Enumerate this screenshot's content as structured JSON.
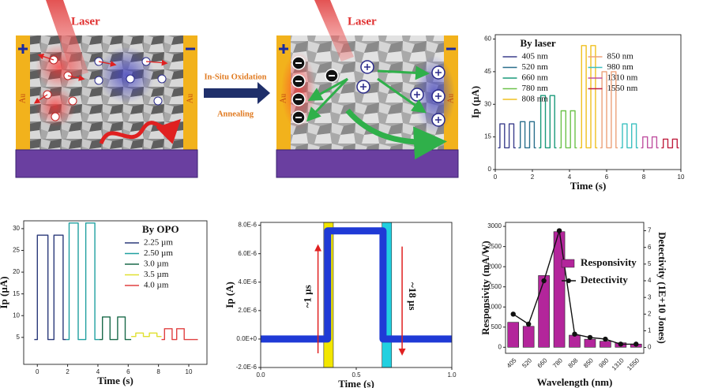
{
  "schematic": {
    "left": {
      "laser": "Laser",
      "electrodes": [
        "Au",
        "Au"
      ]
    },
    "process": {
      "top": "In-Situ Oxidation",
      "bottom": "Annealing"
    },
    "right": {
      "laser": "Laser",
      "electrodes": [
        "Au",
        "Au"
      ]
    }
  },
  "chart_data": [
    {
      "type": "line",
      "legend_title": "By laser",
      "legend": "upper center",
      "xlabel": "Time (s)",
      "ylabel": "Ip (µA)",
      "xlim": [
        0,
        10
      ],
      "ylim": [
        0,
        62
      ],
      "xticks": [
        0,
        2,
        4,
        6,
        8,
        10
      ],
      "yticks": [
        0,
        15,
        30,
        45,
        60
      ],
      "grid": false,
      "series": [
        {
          "name": "405 nm",
          "color": "#3b3f8c",
          "x": [
            0.15,
            0.25,
            0.25,
            0.5,
            0.5,
            0.75,
            0.75,
            1.0,
            1.0,
            1.1
          ],
          "values": [
            10,
            10,
            21,
            21,
            10,
            10,
            21,
            21,
            10,
            10
          ]
        },
        {
          "name": "520 nm",
          "color": "#2a6f8c",
          "x": [
            1.25,
            1.35,
            1.35,
            1.6,
            1.6,
            1.85,
            1.85,
            2.1,
            2.1,
            2.2
          ],
          "values": [
            10,
            10,
            22,
            22,
            10,
            10,
            22,
            22,
            10,
            10
          ]
        },
        {
          "name": "660 nm",
          "color": "#1a9a7a",
          "x": [
            2.35,
            2.45,
            2.45,
            2.7,
            2.7,
            2.95,
            2.95,
            3.2,
            3.2,
            3.3
          ],
          "values": [
            10,
            10,
            34,
            34,
            10,
            10,
            34,
            34,
            10,
            10
          ]
        },
        {
          "name": "780 nm",
          "color": "#6cc24a",
          "x": [
            3.45,
            3.55,
            3.55,
            3.8,
            3.8,
            4.05,
            4.05,
            4.3,
            4.3,
            4.4
          ],
          "values": [
            10,
            10,
            27,
            27,
            10,
            10,
            27,
            27,
            10,
            10
          ]
        },
        {
          "name": "808 nm",
          "color": "#f0c020",
          "x": [
            4.55,
            4.65,
            4.65,
            4.9,
            4.9,
            5.15,
            5.15,
            5.4,
            5.4,
            5.5
          ],
          "values": [
            10,
            10,
            57,
            57,
            10,
            10,
            57,
            57,
            10,
            10
          ]
        },
        {
          "name": "850 nm",
          "color": "#eda27a",
          "x": [
            5.65,
            5.75,
            5.75,
            6.0,
            6.0,
            6.25,
            6.25,
            6.5,
            6.5,
            6.6
          ],
          "values": [
            10,
            10,
            45,
            45,
            10,
            10,
            45,
            45,
            10,
            10
          ]
        },
        {
          "name": "980 nm",
          "color": "#3cc0c0",
          "x": [
            6.75,
            6.85,
            6.85,
            7.1,
            7.1,
            7.35,
            7.35,
            7.6,
            7.6,
            7.7
          ],
          "values": [
            10,
            10,
            21,
            21,
            10,
            10,
            21,
            21,
            10,
            10
          ]
        },
        {
          "name": "1310 nm",
          "color": "#c050a0",
          "x": [
            7.85,
            7.95,
            7.95,
            8.2,
            8.2,
            8.45,
            8.45,
            8.7,
            8.7,
            8.8
          ],
          "values": [
            10,
            10,
            15,
            15,
            10,
            10,
            15,
            15,
            10,
            10
          ]
        },
        {
          "name": "1550 nm",
          "color": "#c02040",
          "x": [
            8.95,
            9.05,
            9.05,
            9.3,
            9.3,
            9.55,
            9.55,
            9.8,
            9.8,
            9.9
          ],
          "values": [
            10,
            10,
            14,
            14,
            10,
            10,
            14,
            14,
            10,
            10
          ]
        }
      ]
    },
    {
      "type": "line",
      "legend_title": "By OPO",
      "legend": "upper right",
      "xlabel": "Time (s)",
      "ylabel": "Ip (µA)",
      "xlim": [
        -0.9,
        11.2
      ],
      "ylim": [
        -1.2,
        31.8
      ],
      "xticks": [
        0,
        2,
        4,
        6,
        8,
        10
      ],
      "yticks": [
        5,
        10,
        15,
        20,
        25,
        30
      ],
      "grid": false,
      "series": [
        {
          "name": "2.25 µm",
          "color": "#2b3a7a",
          "x": [
            -0.2,
            0,
            0,
            0.7,
            0.7,
            1.1,
            1.1,
            1.7,
            1.7,
            1.9
          ],
          "values": [
            4.5,
            4.5,
            28.5,
            28.5,
            4.5,
            4.5,
            28.5,
            28.5,
            4.5,
            4.5
          ]
        },
        {
          "name": "2.50 µm",
          "color": "#20a0a0",
          "x": [
            1.9,
            2.1,
            2.1,
            2.7,
            2.7,
            3.2,
            3.2,
            3.8,
            3.8,
            4.1
          ],
          "values": [
            4.5,
            4.5,
            31.3,
            31.3,
            4.5,
            4.5,
            31.3,
            31.3,
            4.5,
            4.5
          ]
        },
        {
          "name": "3.0 µm",
          "color": "#1a6a4a",
          "x": [
            4.1,
            4.3,
            4.3,
            4.8,
            4.8,
            5.3,
            5.3,
            5.8,
            5.8,
            6.2
          ],
          "values": [
            4.5,
            4.5,
            9.7,
            9.7,
            4.5,
            4.5,
            9.7,
            9.7,
            4.5,
            4.5
          ]
        },
        {
          "name": "3.5 µm",
          "color": "#e0e030",
          "x": [
            6.2,
            6.5,
            6.5,
            7.0,
            7.0,
            7.4,
            7.4,
            7.9,
            7.9,
            8.2
          ],
          "values": [
            5.2,
            5.2,
            6,
            6,
            5.2,
            5.2,
            6,
            6,
            5.2,
            5.2
          ]
        },
        {
          "name": "4.0 µm",
          "color": "#e04040",
          "x": [
            8.2,
            8.4,
            8.4,
            8.9,
            8.9,
            9.2,
            9.2,
            9.7,
            9.7,
            10.6
          ],
          "values": [
            4.5,
            4.5,
            7,
            7,
            4.5,
            4.5,
            7,
            7,
            4.5,
            4.5
          ]
        }
      ]
    },
    {
      "type": "line",
      "xlabel": "Time (s)",
      "ylabel": "Ip (A)",
      "xlim": [
        0,
        1
      ],
      "ylim": [
        -2e-06,
        8.2e-06
      ],
      "xticks": [
        {
          "value": 0,
          "label": "0.0"
        },
        {
          "value": 0.5,
          "label": "0.5"
        },
        {
          "value": 1,
          "label": "1.0"
        }
      ],
      "yticks": [
        {
          "value": -2e-06,
          "label": "-2.0E-6"
        },
        {
          "value": 0,
          "label": "0.0E+0"
        },
        {
          "value": 2e-06,
          "label": "2.0E-6"
        },
        {
          "value": 4e-06,
          "label": "4.0E-6"
        },
        {
          "value": 6e-06,
          "label": "6.0E-6"
        },
        {
          "value": 8e-06,
          "label": "8.0E-6"
        }
      ],
      "grid": false,
      "highlights": [
        {
          "xlim": [
            0.33,
            0.38
          ],
          "color": "#f2e600"
        },
        {
          "xlim": [
            0.635,
            0.685
          ],
          "color": "#22d0e0"
        }
      ],
      "annotations": [
        "~1 µs",
        "~18 µs"
      ],
      "series": [
        {
          "color": "#1f3ad6",
          "x": [
            0,
            0.35,
            0.35,
            0.64,
            0.64,
            1.0
          ],
          "values": [
            0,
            0,
            7.6e-06,
            7.6e-06,
            0,
            0
          ]
        }
      ]
    },
    {
      "type": "bar",
      "legend": "upper right",
      "xlabel": "Wavelength (nm)",
      "ylabel": "Responsivity (mA/W)",
      "ylabel_color": "#1f2fd0",
      "y2label": "Detectivity (1E+10 Jones)",
      "xtick_rotation": 45,
      "categories": [
        "405",
        "520",
        "660",
        "780",
        "808",
        "850",
        "980",
        "1310",
        "1550"
      ],
      "ylim": [
        -150,
        3100
      ],
      "yticks": [
        0,
        500,
        1000,
        1500,
        2000,
        2500,
        3000
      ],
      "y2lim": [
        -0.35,
        7.5
      ],
      "y2ticks": [
        0,
        1,
        2,
        3,
        4,
        5,
        6,
        7
      ],
      "grid": false,
      "series": [
        {
          "name": "Responsivity",
          "color": "#b3259b",
          "values": [
            620,
            520,
            1780,
            2870,
            300,
            200,
            150,
            110,
            80
          ]
        },
        {
          "name": "Detectivity",
          "type": "line",
          "axis": "y2",
          "color": "#111111",
          "values": [
            2.0,
            1.4,
            4.0,
            7.0,
            0.8,
            0.6,
            0.5,
            0.2,
            0.2
          ]
        }
      ]
    }
  ]
}
